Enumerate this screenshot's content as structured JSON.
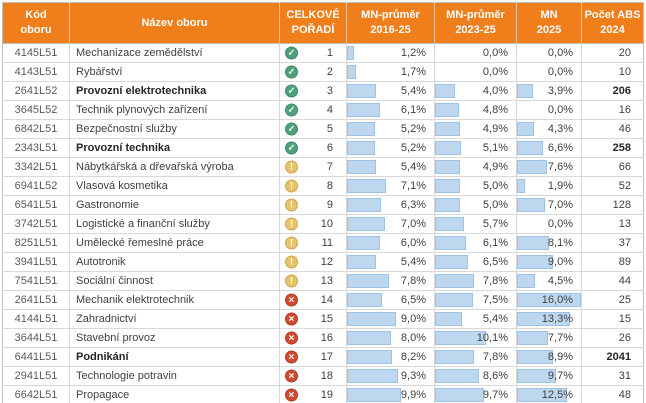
{
  "colors": {
    "header_bg": "#EF7E1B",
    "header_text": "#FFFFFF",
    "bar_fill": "#BDD7EE",
    "bar_border": "#9CC3E5",
    "grid": "#D9D9D9",
    "text": "#3F3F3F",
    "ok": "#4EA17B",
    "warn": "#E6C36C",
    "bad": "#CE4B30"
  },
  "bar_max_percent": 16.0,
  "icons": {
    "ok": {
      "name": "check-circle-icon",
      "meaning": "good ranking"
    },
    "warn": {
      "name": "exclamation-circle-icon",
      "meaning": "middle ranking"
    },
    "bad": {
      "name": "cross-circle-icon",
      "meaning": "poor ranking"
    }
  },
  "table": {
    "columns": [
      {
        "id": "code",
        "label1": "Kód",
        "label2": "oboru"
      },
      {
        "id": "name",
        "label1": "Název oboru",
        "label2": ""
      },
      {
        "id": "rank",
        "label1": "CELKOVÉ",
        "label2": "POŘADÍ"
      },
      {
        "id": "p1",
        "label1": "MN-průměr",
        "label2": "2016-25"
      },
      {
        "id": "p2",
        "label1": "MN-průměr",
        "label2": "2023-25"
      },
      {
        "id": "p3",
        "label1": "MN",
        "label2": "2025"
      },
      {
        "id": "abs",
        "label1": "Počet ABS",
        "label2": "2024"
      }
    ],
    "rows": [
      {
        "code": "4145L51",
        "name": "Mechanizace zemědělství",
        "bold": false,
        "status": "ok",
        "rank": 1,
        "p1": "1,2%",
        "p2": "0,0%",
        "p3": "0,0%",
        "abs": "20"
      },
      {
        "code": "4143L51",
        "name": "Rybářství",
        "bold": false,
        "status": "ok",
        "rank": 2,
        "p1": "1,7%",
        "p2": "0,0%",
        "p3": "0,0%",
        "abs": "10"
      },
      {
        "code": "2641L52",
        "name": "Provozní elektrotechnika",
        "bold": true,
        "status": "ok",
        "rank": 3,
        "p1": "5,4%",
        "p2": "4,0%",
        "p3": "3,9%",
        "abs": "206"
      },
      {
        "code": "3645L52",
        "name": "Technik plynových zařízení",
        "bold": false,
        "status": "ok",
        "rank": 4,
        "p1": "6,1%",
        "p2": "4,8%",
        "p3": "0,0%",
        "abs": "16"
      },
      {
        "code": "6842L51",
        "name": "Bezpečnostní služby",
        "bold": false,
        "status": "ok",
        "rank": 5,
        "p1": "5,2%",
        "p2": "4,9%",
        "p3": "4,3%",
        "abs": "46"
      },
      {
        "code": "2343L51",
        "name": "Provozní technika",
        "bold": true,
        "status": "ok",
        "rank": 6,
        "p1": "5,2%",
        "p2": "5,1%",
        "p3": "6,6%",
        "abs": "258"
      },
      {
        "code": "3342L51",
        "name": "Nábytkářská a dřevařská výroba",
        "bold": false,
        "status": "warn",
        "rank": 7,
        "p1": "5,4%",
        "p2": "4,9%",
        "p3": "7,6%",
        "abs": "66"
      },
      {
        "code": "6941L52",
        "name": "Vlasová kosmetika",
        "bold": false,
        "status": "warn",
        "rank": 8,
        "p1": "7,1%",
        "p2": "5,0%",
        "p3": "1,9%",
        "abs": "52"
      },
      {
        "code": "6541L51",
        "name": "Gastronomie",
        "bold": false,
        "status": "warn",
        "rank": 9,
        "p1": "6,3%",
        "p2": "5,0%",
        "p3": "7,0%",
        "abs": "128"
      },
      {
        "code": "3742L51",
        "name": "Logistické a finanční služby",
        "bold": false,
        "status": "warn",
        "rank": 10,
        "p1": "7,0%",
        "p2": "5,7%",
        "p3": "0,0%",
        "abs": "13"
      },
      {
        "code": "8251L51",
        "name": "Umělecké řemeslné práce",
        "bold": false,
        "status": "warn",
        "rank": 11,
        "p1": "6,0%",
        "p2": "6,1%",
        "p3": "8,1%",
        "abs": "37"
      },
      {
        "code": "3941L51",
        "name": "Autotronik",
        "bold": false,
        "status": "warn",
        "rank": 12,
        "p1": "5,4%",
        "p2": "6,5%",
        "p3": "9,0%",
        "abs": "89"
      },
      {
        "code": "7541L51",
        "name": "Sociální činnost",
        "bold": false,
        "status": "warn",
        "rank": 13,
        "p1": "7,8%",
        "p2": "7,8%",
        "p3": "4,5%",
        "abs": "44"
      },
      {
        "code": "2641L51",
        "name": "Mechanik elektrotechnik",
        "bold": false,
        "status": "bad",
        "rank": 14,
        "p1": "6,5%",
        "p2": "7,5%",
        "p3": "16,0%",
        "abs": "25"
      },
      {
        "code": "4144L51",
        "name": "Zahradnictví",
        "bold": false,
        "status": "bad",
        "rank": 15,
        "p1": "9,0%",
        "p2": "5,4%",
        "p3": "13,3%",
        "abs": "15"
      },
      {
        "code": "3644L51",
        "name": "Stavební provoz",
        "bold": false,
        "status": "bad",
        "rank": 16,
        "p1": "8,0%",
        "p2": "10,1%",
        "p3": "7,7%",
        "abs": "26"
      },
      {
        "code": "6441L51",
        "name": "Podnikání",
        "bold": true,
        "status": "bad",
        "rank": 17,
        "p1": "8,2%",
        "p2": "7,8%",
        "p3": "8,9%",
        "abs": "2041"
      },
      {
        "code": "2941L51",
        "name": "Technologie potravin",
        "bold": false,
        "status": "bad",
        "rank": 18,
        "p1": "9,3%",
        "p2": "8,6%",
        "p3": "9,7%",
        "abs": "31"
      },
      {
        "code": "6642L51",
        "name": "Propagace",
        "bold": false,
        "status": "bad",
        "rank": 19,
        "p1": "9,9%",
        "p2": "9,7%",
        "p3": "12,5%",
        "abs": "48"
      }
    ]
  }
}
